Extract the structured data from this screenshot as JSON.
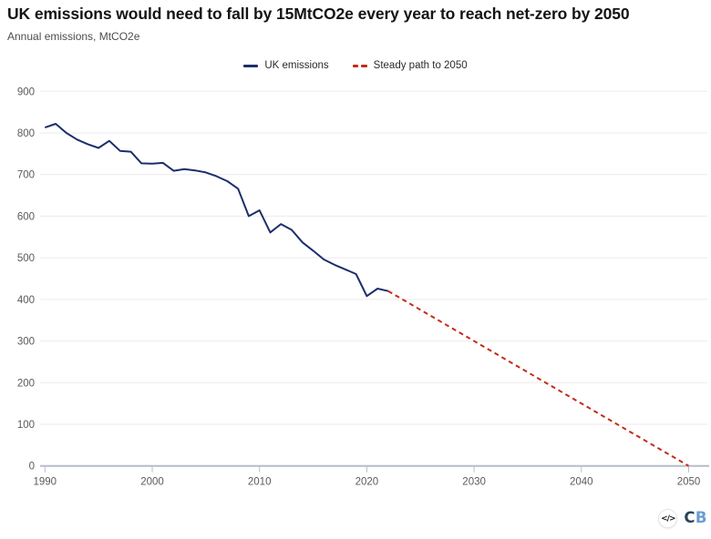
{
  "chart_data": {
    "type": "line",
    "title": "UK emissions would need to fall by 15MtCO2e every year to reach net-zero by 2050",
    "subtitle": "Annual emissions, MtCO2e",
    "xlabel": "",
    "ylabel": "Annual emissions, MtCO2e",
    "xlim": [
      1989.5,
      2051
    ],
    "ylim": [
      0,
      900
    ],
    "xticks": [
      1990,
      2000,
      2010,
      2020,
      2030,
      2040,
      2050
    ],
    "yticks": [
      0,
      100,
      200,
      300,
      400,
      500,
      600,
      700,
      800,
      900
    ],
    "grid": "horizontal",
    "legend_position": "top-center",
    "series": [
      {
        "name": "UK emissions",
        "color": "#1c2e6b",
        "style": "solid",
        "x": [
          1990,
          1991,
          1992,
          1993,
          1994,
          1995,
          1996,
          1997,
          1998,
          1999,
          2000,
          2001,
          2002,
          2003,
          2004,
          2005,
          2006,
          2007,
          2008,
          2009,
          2010,
          2011,
          2012,
          2013,
          2014,
          2015,
          2016,
          2017,
          2018,
          2019,
          2020,
          2021,
          2022
        ],
        "values": [
          813,
          822,
          800,
          784,
          773,
          764,
          781,
          757,
          755,
          727,
          726,
          728,
          709,
          713,
          710,
          705,
          696,
          684,
          666,
          600,
          614,
          561,
          581,
          567,
          537,
          517,
          496,
          483,
          472,
          461,
          408,
          426,
          420
        ]
      },
      {
        "name": "Steady path to 2050",
        "color": "#c32b1a",
        "style": "dashed",
        "x": [
          2022,
          2050
        ],
        "values": [
          420,
          0
        ]
      }
    ],
    "colors": {
      "gridline": "#ebebeb",
      "axis_line": "#b6bdc9",
      "tick_label": "#5a5a5a"
    }
  },
  "footer": {
    "embed_label": "</>",
    "logo_c": "C",
    "logo_b": "B",
    "logo_c_color": "#2b4458",
    "logo_b_color": "#6b9bd1"
  }
}
